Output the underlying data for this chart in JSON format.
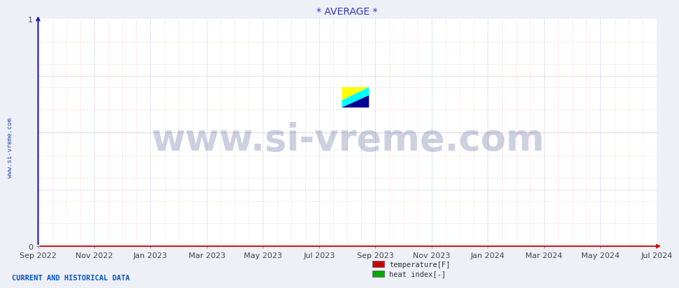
{
  "title": "* AVERAGE *",
  "title_color": "#3333cc",
  "title_fontsize": 10,
  "bg_color": "#eef0f8",
  "plot_bg_color": "#ffffff",
  "ylim": [
    0,
    1
  ],
  "yticks": [
    0,
    1
  ],
  "axis_left_color": "#0000cc",
  "axis_bottom_color": "#cc0000",
  "grid_major_color": "#8888cc",
  "grid_major_style": ":",
  "grid_major_lw": 0.7,
  "grid_major_alpha": 0.6,
  "grid_minor_color": "#ffaaaa",
  "grid_minor_style": ":",
  "grid_minor_lw": 0.5,
  "grid_minor_alpha": 0.8,
  "xtick_labels": [
    "Sep 2022",
    "Nov 2022",
    "Jan 2023",
    "Mar 2023",
    "May 2023",
    "Jul 2023",
    "Sep 2023",
    "Nov 2023",
    "Jan 2024",
    "Mar 2024",
    "May 2024",
    "Jul 2024"
  ],
  "watermark_text": "www.si-vreme.com",
  "watermark_color": "#1a2f7a",
  "watermark_alpha": 0.22,
  "watermark_fontsize": 38,
  "sidebar_text": "www.si-vreme.com",
  "sidebar_color": "#2244aa",
  "sidebar_fontsize": 6.5,
  "footer_text": "CURRENT AND HISTORICAL DATA",
  "footer_color": "#0055cc",
  "footer_fontsize": 7.5,
  "legend_items": [
    {
      "label": "temperature[F]",
      "color": "#cc0000"
    },
    {
      "label": "heat index[-]",
      "color": "#00aa00"
    }
  ],
  "legend_fontsize": 7.5,
  "tick_fontsize": 8,
  "tick_color": "#444444",
  "logo_colors": {
    "yellow": "#ffff00",
    "cyan": "#00ffff",
    "blue": "#000099"
  }
}
